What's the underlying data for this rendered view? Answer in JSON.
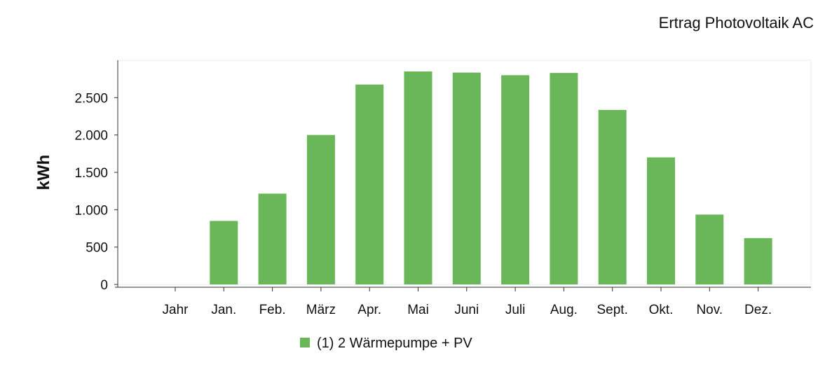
{
  "chart_data": {
    "type": "bar",
    "title": "Ertrag Photovoltaik AC",
    "xlabel": "",
    "ylabel": "kWh",
    "categories": [
      "Jahr",
      "Jan.",
      "Feb.",
      "März",
      "Apr.",
      "Mai",
      "Juni",
      "Juli",
      "Aug.",
      "Sept.",
      "Okt.",
      "Nov.",
      "Dez."
    ],
    "series": [
      {
        "name": "(1) 2 Wärmepumpe + PV",
        "color": "#6ab75a",
        "values": [
          null,
          850,
          1215,
          2000,
          2675,
          2850,
          2835,
          2800,
          2830,
          2335,
          1700,
          935,
          620
        ]
      }
    ],
    "yticks": [
      0,
      500,
      1000,
      1500,
      2000,
      2500
    ],
    "ytick_labels": [
      "0",
      "500",
      "1.000",
      "1.500",
      "2.000",
      "2.500"
    ],
    "ylim": [
      0,
      3000
    ],
    "grid": false,
    "legend_position": "bottom-center"
  }
}
